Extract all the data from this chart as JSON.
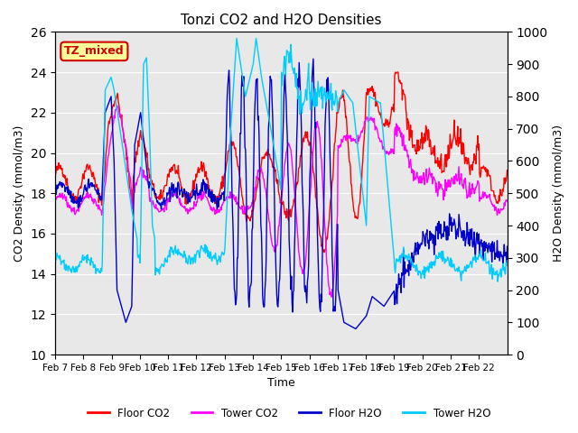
{
  "title": "Tonzi CO2 and H2O Densities",
  "xlabel": "Time",
  "ylabel_left": "CO2 Density (mmol/m3)",
  "ylabel_right": "H2O Density (mmol/m3)",
  "ylim_left": [
    10,
    26
  ],
  "ylim_right": [
    0,
    1000
  ],
  "yticks_left": [
    10,
    12,
    14,
    16,
    18,
    20,
    22,
    24,
    26
  ],
  "yticks_right": [
    0,
    100,
    200,
    300,
    400,
    500,
    600,
    700,
    800,
    900,
    1000
  ],
  "xtick_labels": [
    "Feb 7",
    "Feb 8",
    "Feb 9",
    "Feb 10",
    "Feb 11",
    "Feb 12",
    "Feb 13",
    "Feb 14",
    "Feb 15",
    "Feb 16",
    "Feb 17",
    "Feb 18",
    "Feb 19",
    "Feb 20",
    "Feb 21",
    "Feb 22"
  ],
  "legend_labels": [
    "Floor CO2",
    "Tower CO2",
    "Floor H2O",
    "Tower H2O"
  ],
  "legend_colors": [
    "#ff0000",
    "#ff00ff",
    "#0000cc",
    "#00ccff"
  ],
  "annotation_text": "TZ_mixed",
  "annotation_color": "#cc0000",
  "annotation_bg": "#ffff99",
  "bg_color": "#e8e8e8",
  "fig_bg": "#ffffff",
  "line_width": 1.0
}
